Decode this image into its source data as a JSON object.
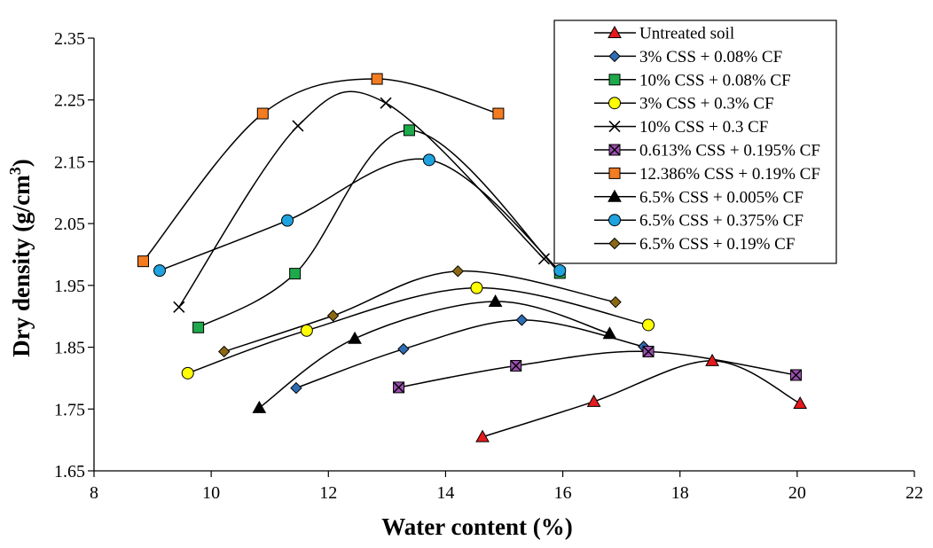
{
  "chart_data": {
    "type": "scatter",
    "title": "",
    "xlabel": "Water content (%)",
    "ylabel_main": "Dry density (g/cm",
    "ylabel_sup": "3",
    "ylabel_close": ")",
    "xlim": [
      8,
      22
    ],
    "ylim": [
      1.65,
      2.35
    ],
    "xticks": [
      8,
      10,
      12,
      14,
      16,
      18,
      20,
      22
    ],
    "yticks": [
      1.65,
      1.75,
      1.85,
      1.95,
      2.05,
      2.15,
      2.25,
      2.35
    ],
    "xtick_labels": [
      "8",
      "10",
      "12",
      "14",
      "16",
      "18",
      "20",
      "22"
    ],
    "ytick_labels": [
      "1.65",
      "1.75",
      "1.85",
      "1.95",
      "2.05",
      "2.15",
      "2.25",
      "2.35"
    ],
    "legend_position": "top-right",
    "series": [
      {
        "name": "Untreated soil",
        "marker": "triangle",
        "color": "#e41a1c",
        "x": [
          14.63,
          16.53,
          18.55,
          20.05
        ],
        "y": [
          1.705,
          1.762,
          1.828,
          1.759
        ]
      },
      {
        "name": "3% CSS + 0.08% CF",
        "marker": "diamond",
        "color": "#2e6db4",
        "x": [
          11.45,
          13.28,
          15.3,
          17.38
        ],
        "y": [
          1.784,
          1.847,
          1.894,
          1.851
        ]
      },
      {
        "name": "10% CSS + 0.08% CF",
        "marker": "square",
        "color": "#1eaa4a",
        "x": [
          9.78,
          11.43,
          13.38,
          15.95
        ],
        "y": [
          1.882,
          1.969,
          2.201,
          1.97
        ]
      },
      {
        "name": "3% CSS + 0.3% CF",
        "marker": "circle",
        "color": "#ffff00",
        "x": [
          9.6,
          11.63,
          14.53,
          17.46
        ],
        "y": [
          1.808,
          1.877,
          1.946,
          1.886
        ]
      },
      {
        "name": "10% CSS + 0.3 CF",
        "marker": "x",
        "color": "#000000",
        "x": [
          9.45,
          11.48,
          12.98,
          15.68
        ],
        "y": [
          1.915,
          2.208,
          2.245,
          1.993
        ]
      },
      {
        "name": "0.613% CSS + 0.195% CF",
        "marker": "xsquare",
        "color": "#9b4fb0",
        "x": [
          13.2,
          15.2,
          17.46,
          19.98
        ],
        "y": [
          1.785,
          1.82,
          1.843,
          1.805
        ]
      },
      {
        "name": "12.386% CSS + 0.19% CF",
        "marker": "square",
        "color": "#f47c20",
        "x": [
          8.84,
          10.88,
          12.83,
          14.9
        ],
        "y": [
          1.989,
          2.228,
          2.284,
          2.228
        ]
      },
      {
        "name": "6.5% CSS + 0.005% CF",
        "marker": "triangle",
        "color": "#000000",
        "x": [
          10.82,
          12.45,
          14.85,
          16.8
        ],
        "y": [
          1.752,
          1.864,
          1.924,
          1.872
        ]
      },
      {
        "name": "6.5% CSS + 0.375% CF",
        "marker": "circle",
        "color": "#1ea3e0",
        "x": [
          9.12,
          11.3,
          13.72,
          15.95
        ],
        "y": [
          1.974,
          2.055,
          2.153,
          1.974
        ]
      },
      {
        "name": "6.5% CSS + 0.19% CF",
        "marker": "diamond",
        "color": "#8b6914",
        "x": [
          10.22,
          12.08,
          14.21,
          16.9
        ],
        "y": [
          1.843,
          1.901,
          1.973,
          1.923
        ]
      }
    ]
  }
}
